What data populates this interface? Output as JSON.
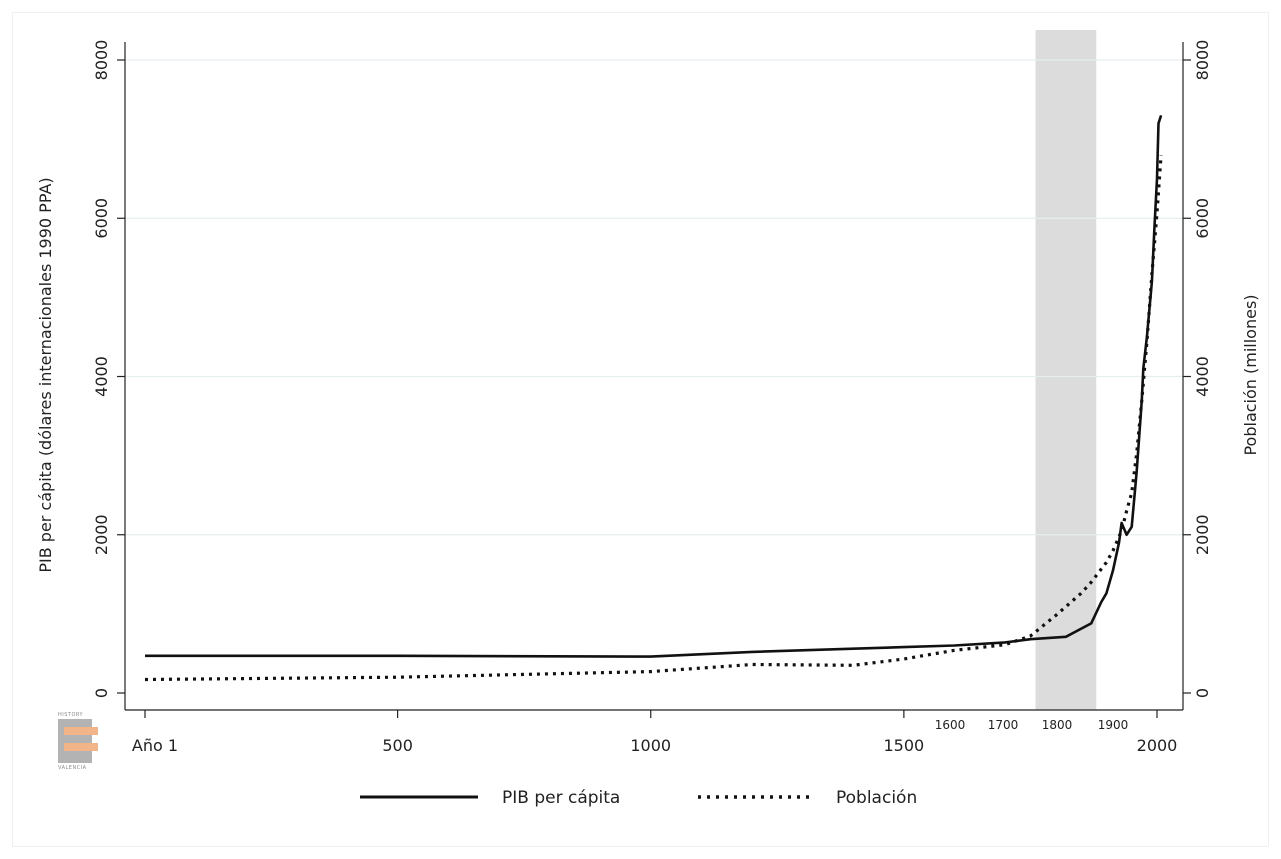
{
  "chart_data": {
    "type": "line",
    "title": "",
    "xlabel": "",
    "ylabel_left": "PIB per cápita (dólares internacionales 1990 PPA)",
    "ylabel_right": "Población (millones)",
    "xlim": [
      1,
      2010
    ],
    "ylim_left": [
      0,
      8000
    ],
    "ylim_right": [
      0,
      8000
    ],
    "grid": true,
    "legend_position": "bottom",
    "x_ticks": [
      {
        "value": 1,
        "label": "Año 1"
      },
      {
        "value": 500,
        "label": "500"
      },
      {
        "value": 1000,
        "label": "1000"
      },
      {
        "value": 1500,
        "label": "1500"
      },
      {
        "value": 2000,
        "label": "2000"
      }
    ],
    "x_minor_ticks": [
      {
        "value": 1600,
        "label": "1600"
      },
      {
        "value": 1700,
        "label": "1700"
      },
      {
        "value": 1800,
        "label": "1800"
      },
      {
        "value": 1900,
        "label": "1900"
      }
    ],
    "y_ticks_left": [
      "0",
      "2000",
      "4000",
      "6000",
      "8000"
    ],
    "y_ticks_right": [
      "0",
      "2000",
      "4000",
      "6000",
      "8000"
    ],
    "shaded_region": {
      "x_start": 1760,
      "x_end": 1880,
      "color": "#dcdcdc"
    },
    "series": [
      {
        "name": "PIB per cápita",
        "style": "solid",
        "axis": "left",
        "color": "#111111",
        "points": [
          [
            1,
            470
          ],
          [
            500,
            470
          ],
          [
            1000,
            460
          ],
          [
            1200,
            520
          ],
          [
            1400,
            560
          ],
          [
            1500,
            580
          ],
          [
            1600,
            600
          ],
          [
            1700,
            640
          ],
          [
            1750,
            680
          ],
          [
            1820,
            710
          ],
          [
            1870,
            880
          ],
          [
            1890,
            1150
          ],
          [
            1900,
            1260
          ],
          [
            1913,
            1550
          ],
          [
            1925,
            1900
          ],
          [
            1930,
            2150
          ],
          [
            1940,
            2000
          ],
          [
            1950,
            2100
          ],
          [
            1960,
            2800
          ],
          [
            1970,
            3700
          ],
          [
            1973,
            4100
          ],
          [
            1980,
            4500
          ],
          [
            1990,
            5200
          ],
          [
            1995,
            5900
          ],
          [
            2000,
            6500
          ],
          [
            2003,
            7200
          ],
          [
            2008,
            7300
          ]
        ]
      },
      {
        "name": "Población",
        "style": "dotted",
        "axis": "right",
        "color": "#111111",
        "points": [
          [
            1,
            170
          ],
          [
            500,
            200
          ],
          [
            1000,
            270
          ],
          [
            1200,
            360
          ],
          [
            1400,
            350
          ],
          [
            1500,
            430
          ],
          [
            1600,
            540
          ],
          [
            1700,
            610
          ],
          [
            1750,
            720
          ],
          [
            1800,
            980
          ],
          [
            1850,
            1260
          ],
          [
            1870,
            1400
          ],
          [
            1900,
            1650
          ],
          [
            1913,
            1800
          ],
          [
            1930,
            2050
          ],
          [
            1940,
            2300
          ],
          [
            1950,
            2530
          ],
          [
            1960,
            3030
          ],
          [
            1970,
            3700
          ],
          [
            1980,
            4440
          ],
          [
            1990,
            5290
          ],
          [
            2000,
            6070
          ],
          [
            2008,
            6800
          ]
        ]
      }
    ]
  },
  "legend": {
    "items": [
      {
        "label": "PIB per cápita",
        "style": "solid"
      },
      {
        "label": "Población",
        "style": "dotted"
      }
    ]
  },
  "logo": {
    "top_text": "HISTORY",
    "bottom_text": "VALENCIA",
    "colors": {
      "gray": "#9a9a9a",
      "accent": "#f2b58a"
    }
  }
}
